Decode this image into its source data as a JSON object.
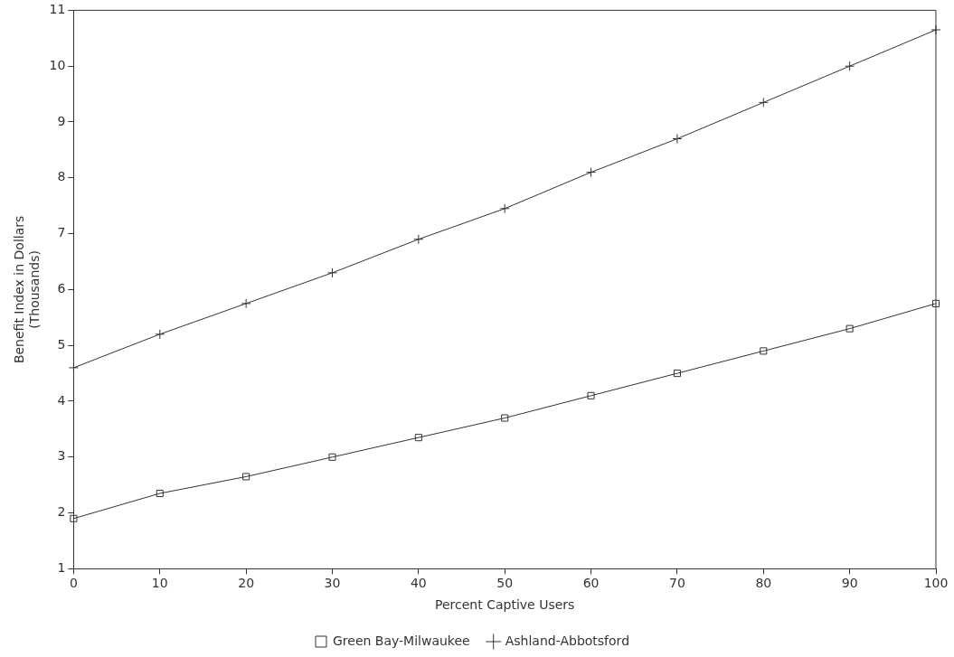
{
  "chart_data": {
    "type": "line",
    "xlabel": "Percent Captive Users",
    "ylabel": "Benefit Index in Dollars\n(Thousands)",
    "x": [
      0,
      10,
      20,
      30,
      40,
      50,
      60,
      70,
      80,
      90,
      100
    ],
    "series": [
      {
        "name": "Green Bay-Milwaukee",
        "color": "#333333",
        "marker": "square",
        "values": [
          1.9,
          2.35,
          2.65,
          3.0,
          3.35,
          3.7,
          4.1,
          4.5,
          4.9,
          5.3,
          5.75
        ]
      },
      {
        "name": "Ashland-Abbotsford",
        "color": "#333333",
        "marker": "cross",
        "values": [
          4.6,
          5.2,
          5.75,
          6.3,
          6.9,
          7.45,
          8.1,
          8.7,
          9.35,
          10.0,
          10.65
        ]
      }
    ],
    "xlim": [
      0,
      100
    ],
    "xticks": [
      0,
      10,
      20,
      30,
      40,
      50,
      60,
      70,
      80,
      90,
      100
    ],
    "ylim": [
      1,
      11
    ],
    "yticks": [
      1,
      2,
      3,
      4,
      5,
      6,
      7,
      8,
      9,
      10,
      11
    ],
    "grid": false,
    "legend": "bottom",
    "line_style": "solid"
  }
}
